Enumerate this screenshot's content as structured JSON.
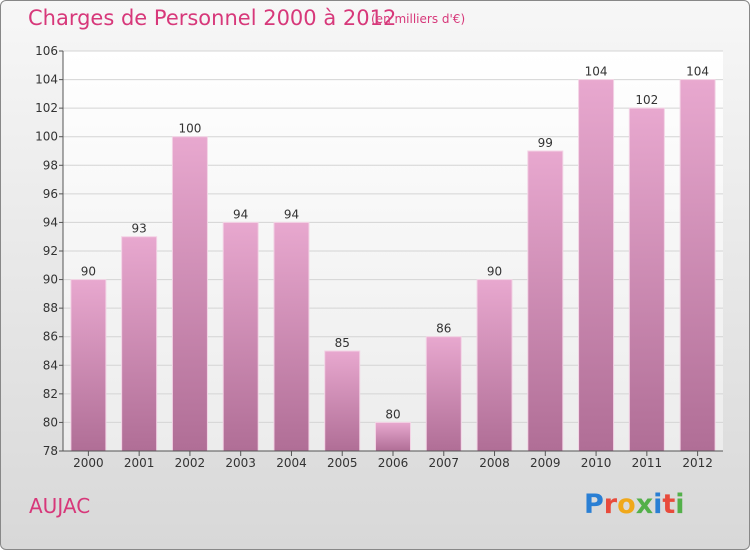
{
  "header": {
    "title": "Charges de Personnel 2000 à 2012",
    "subtitle": "(en milliers d'€)"
  },
  "footer": {
    "town": "AUJAC",
    "logo_text": "Proxiti"
  },
  "colors": {
    "title": "#d7387a",
    "bar_top": "#e8a8cf",
    "bar_bottom": "#b06e96",
    "logo": [
      "#2a7fd4",
      "#e84b3c",
      "#f0a81a",
      "#53b04a",
      "#2a7fd4",
      "#e84b3c",
      "#53b04a"
    ]
  },
  "chart_data": {
    "type": "bar",
    "categories": [
      "2000",
      "2001",
      "2002",
      "2003",
      "2004",
      "2005",
      "2006",
      "2007",
      "2008",
      "2009",
      "2010",
      "2011",
      "2012"
    ],
    "values": [
      90,
      93,
      100,
      94,
      94,
      85,
      80,
      86,
      90,
      99,
      104,
      102,
      104
    ],
    "ylim": [
      78,
      106
    ],
    "yticks": [
      78,
      80,
      82,
      84,
      86,
      88,
      90,
      92,
      94,
      96,
      98,
      100,
      102,
      104,
      106
    ],
    "grid": true,
    "data_labels": true
  }
}
